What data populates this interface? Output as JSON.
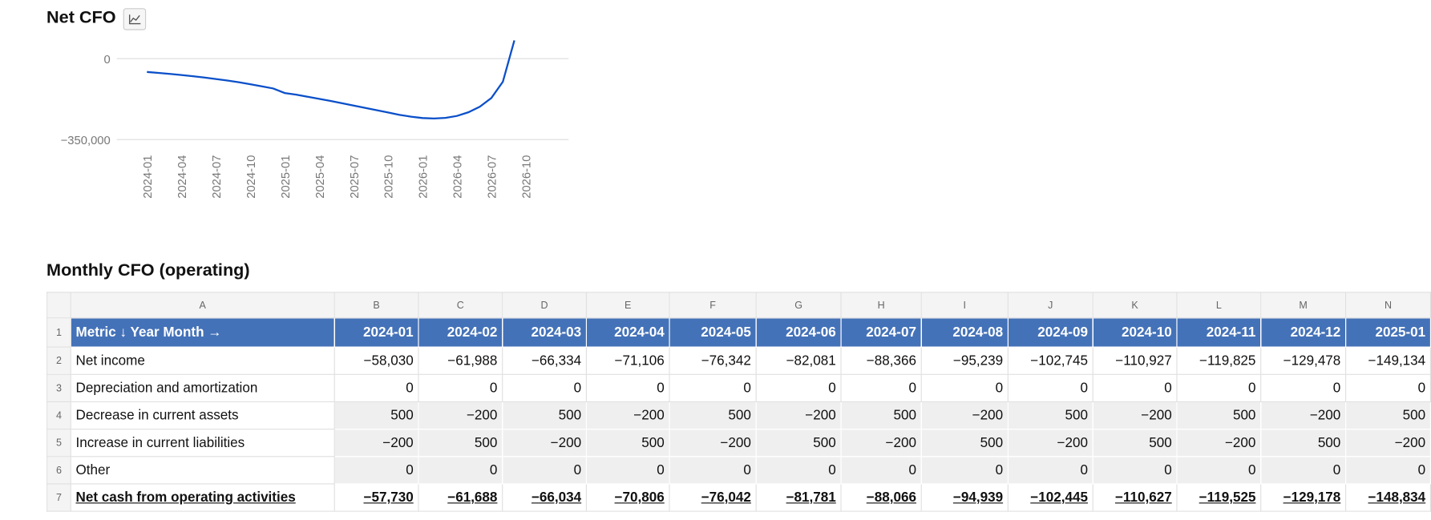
{
  "chart_data": {
    "type": "line",
    "title": "Net CFO",
    "x": [
      "2024-01",
      "2024-02",
      "2024-03",
      "2024-04",
      "2024-05",
      "2024-06",
      "2024-07",
      "2024-08",
      "2024-09",
      "2024-10",
      "2024-11",
      "2024-12",
      "2025-01",
      "2025-02",
      "2025-03",
      "2025-04",
      "2025-05",
      "2025-06",
      "2025-07",
      "2025-08",
      "2025-09",
      "2025-10",
      "2025-11",
      "2025-12",
      "2026-01",
      "2026-02",
      "2026-03",
      "2026-04",
      "2026-05",
      "2026-06",
      "2026-07",
      "2026-08",
      "2026-09"
    ],
    "values": [
      -57730,
      -61688,
      -66034,
      -70806,
      -76042,
      -81781,
      -88066,
      -94939,
      -102445,
      -110627,
      -119525,
      -129178,
      -148834,
      -156000,
      -165000,
      -174000,
      -183000,
      -193000,
      -203000,
      -213000,
      -223000,
      -233000,
      -243000,
      -251000,
      -257000,
      -259000,
      -256000,
      -248000,
      -232000,
      -208000,
      -170000,
      -100000,
      79000
    ],
    "color": "#0a4fc9",
    "ylim": [
      -350000,
      80000
    ],
    "yticks": [
      0,
      {
        "value": -350000,
        "label": "−350,000"
      }
    ],
    "xticks": [
      "2024-01",
      "2024-04",
      "2024-07",
      "2024-10",
      "2025-01",
      "2025-04",
      "2025-07",
      "2025-10",
      "2026-01",
      "2026-04",
      "2026-07",
      "2026-10"
    ],
    "grid": true
  },
  "table": {
    "title": "Monthly CFO (operating)",
    "column_letters": [
      "A",
      "B",
      "C",
      "D",
      "E",
      "F",
      "G",
      "H",
      "I",
      "J",
      "K",
      "L",
      "M",
      "N"
    ],
    "row_numbers": [
      1,
      2,
      3,
      4,
      5,
      6,
      7
    ],
    "rows": [
      [
        "Metric ↓ Year Month →",
        "2024-01",
        "2024-02",
        "2024-03",
        "2024-04",
        "2024-05",
        "2024-06",
        "2024-07",
        "2024-08",
        "2024-09",
        "2024-10",
        "2024-11",
        "2024-12",
        "2025-01"
      ],
      [
        "Net income",
        "−58,030",
        "−61,988",
        "−66,334",
        "−71,106",
        "−76,342",
        "−82,081",
        "−88,366",
        "−95,239",
        "−102,745",
        "−110,927",
        "−119,825",
        "−129,478",
        "−149,134"
      ],
      [
        "Depreciation and amortization",
        "0",
        "0",
        "0",
        "0",
        "0",
        "0",
        "0",
        "0",
        "0",
        "0",
        "0",
        "0",
        "0"
      ],
      [
        "Decrease in current assets",
        "500",
        "−200",
        "500",
        "−200",
        "500",
        "−200",
        "500",
        "−200",
        "500",
        "−200",
        "500",
        "−200",
        "500"
      ],
      [
        "Increase in current liabilities",
        "−200",
        "500",
        "−200",
        "500",
        "−200",
        "500",
        "−200",
        "500",
        "−200",
        "500",
        "−200",
        "500",
        "−200"
      ],
      [
        "Other",
        "0",
        "0",
        "0",
        "0",
        "0",
        "0",
        "0",
        "0",
        "0",
        "0",
        "0",
        "0",
        "0"
      ],
      [
        "Net cash from operating activities",
        "−57,730",
        "−61,688",
        "−66,034",
        "−70,806",
        "−76,042",
        "−81,781",
        "−88,066",
        "−94,939",
        "−102,445",
        "−110,627",
        "−119,525",
        "−129,178",
        "−148,834"
      ]
    ]
  }
}
